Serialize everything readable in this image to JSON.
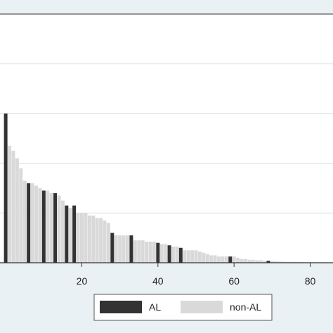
{
  "chart_data": {
    "type": "bar",
    "xlim": [
      -1.5,
      86
    ],
    "ylim": [
      0,
      1
    ],
    "x_ticks": [
      20,
      40,
      60,
      80
    ],
    "y_gridlines": [
      0.2,
      0.4,
      0.6,
      0.8
    ],
    "grid": true,
    "legend_placement": "bottom",
    "colors": {
      "background": "#eaf1f4",
      "plot_background": "#ffffff",
      "AL": "#333333",
      "non-AL": "#d9d9d9",
      "grid": "#dde6ea",
      "axis": "#333333"
    },
    "legend": [
      {
        "name": "AL",
        "color": "#333333"
      },
      {
        "name": "non-AL",
        "color": "#d9d9d9"
      }
    ],
    "series": [
      {
        "name": "AL",
        "x": [
          0,
          6,
          10,
          13,
          16,
          18,
          28,
          33,
          40,
          43,
          46,
          59,
          69
        ],
        "values": [
          0.6,
          0.32,
          0.29,
          0.28,
          0.23,
          0.23,
          0.12,
          0.11,
          0.08,
          0.07,
          0.06,
          0.025,
          0.008
        ]
      },
      {
        "name": "non-AL",
        "x": [
          1,
          2,
          3,
          4,
          5,
          7,
          8,
          9,
          11,
          12,
          14,
          15,
          17,
          19,
          20,
          21,
          22,
          23,
          24,
          25,
          26,
          27,
          29,
          30,
          31,
          32,
          34,
          35,
          36,
          37,
          38,
          39,
          41,
          42,
          44,
          45,
          47,
          48,
          49,
          50,
          51,
          52,
          53,
          54,
          55,
          56,
          57,
          58,
          60,
          61,
          62,
          63,
          64,
          65,
          66,
          67,
          68,
          70,
          71,
          72,
          73,
          74,
          75,
          76,
          77,
          78,
          79,
          80,
          81,
          82,
          83
        ],
        "values": [
          0.47,
          0.45,
          0.42,
          0.38,
          0.33,
          0.32,
          0.31,
          0.3,
          0.29,
          0.28,
          0.27,
          0.25,
          0.22,
          0.2,
          0.2,
          0.2,
          0.19,
          0.19,
          0.18,
          0.18,
          0.17,
          0.16,
          0.11,
          0.11,
          0.11,
          0.11,
          0.09,
          0.09,
          0.09,
          0.085,
          0.085,
          0.085,
          0.075,
          0.075,
          0.065,
          0.065,
          0.05,
          0.05,
          0.05,
          0.05,
          0.045,
          0.04,
          0.035,
          0.03,
          0.03,
          0.025,
          0.025,
          0.025,
          0.025,
          0.02,
          0.015,
          0.015,
          0.012,
          0.012,
          0.01,
          0.01,
          0.008,
          0.007,
          0.006,
          0.005,
          0.005,
          0.004,
          0.004,
          0.004,
          0.003,
          0.003,
          0.002,
          0.002,
          0.002,
          0.002,
          0.002
        ]
      }
    ]
  }
}
